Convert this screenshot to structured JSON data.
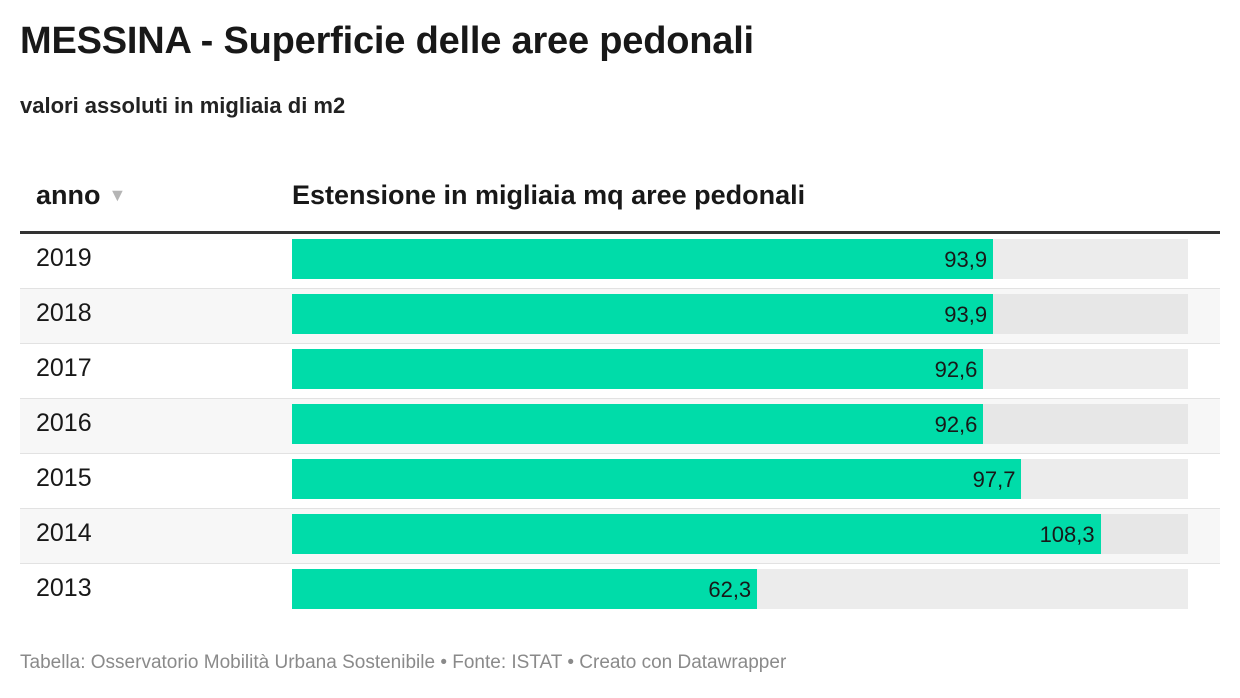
{
  "header": {
    "title": "MESSINA - Superficie delle aree pedonali",
    "subtitle": "valori assoluti in migliaia di m2"
  },
  "table": {
    "col_year": "anno",
    "col_value": "Estensione in migliaia mq aree pedonali",
    "sort_icon": "▼"
  },
  "chart_data": {
    "type": "bar",
    "orientation": "horizontal",
    "categories": [
      "2019",
      "2018",
      "2017",
      "2016",
      "2015",
      "2014",
      "2013"
    ],
    "values": [
      93.9,
      93.9,
      92.6,
      92.6,
      97.7,
      108.3,
      62.3
    ],
    "value_labels": [
      "93,9",
      "93,9",
      "92,6",
      "92,6",
      "97,7",
      "108,3",
      "62,3"
    ],
    "xlim": [
      0,
      120
    ],
    "colors": {
      "bar": "#00dca9",
      "track": "#ececec"
    }
  },
  "footer": {
    "text": "Tabella: Osservatorio Mobilità Urbana Sostenibile • Fonte: ISTAT • Creato con Datawrapper"
  }
}
